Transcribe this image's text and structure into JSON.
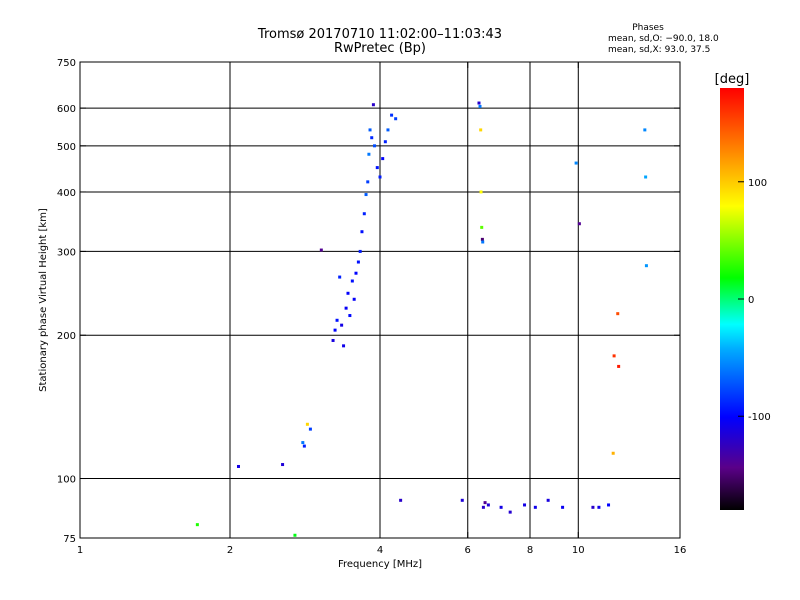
{
  "chart_data": {
    "type": "scatter",
    "title": "Tromsø 20170710 11:02:00–11:03:43",
    "subtitle": "RwPretec (Bp)",
    "xlabel": "Frequency [MHz]",
    "ylabel": "Stationary phase Virtual Height [km]",
    "x_scale": "log",
    "y_scale": "log",
    "xlim": [
      1,
      16
    ],
    "ylim": [
      75,
      750
    ],
    "x_ticks": [
      1,
      2,
      4,
      6,
      8,
      10,
      16
    ],
    "y_ticks": [
      75,
      100,
      200,
      300,
      400,
      500,
      600,
      750
    ],
    "x_grid": [
      2,
      4,
      6,
      8,
      10
    ],
    "y_grid": [
      100,
      200,
      300,
      400,
      500,
      600
    ],
    "phase_info": {
      "title": "Phases",
      "line1": "mean, sd,O: −90.0, 18.0",
      "line2": "mean, sd,X:  93.0, 37.5"
    },
    "colorbar": {
      "label": "[deg]",
      "range": [
        -180,
        180
      ],
      "ticks": [
        -100,
        0,
        100
      ]
    },
    "series": [
      {
        "points": [
          [
            1.72,
            80,
            25
          ],
          [
            2.08,
            106,
            -110
          ],
          [
            2.55,
            107,
            -115
          ],
          [
            2.7,
            76,
            15
          ],
          [
            2.8,
            119,
            -60
          ],
          [
            2.82,
            117,
            -90
          ],
          [
            2.86,
            130,
            95
          ],
          [
            2.9,
            127,
            -80
          ],
          [
            3.05,
            302,
            -140
          ],
          [
            3.22,
            195,
            -112
          ],
          [
            3.25,
            205,
            -100
          ],
          [
            3.28,
            215,
            -95
          ],
          [
            3.32,
            265,
            -90
          ],
          [
            3.35,
            210,
            -110
          ],
          [
            3.38,
            190,
            -108
          ],
          [
            3.42,
            228,
            -104
          ],
          [
            3.45,
            245,
            -102
          ],
          [
            3.48,
            220,
            -98
          ],
          [
            3.52,
            260,
            -96
          ],
          [
            3.55,
            238,
            -103
          ],
          [
            3.58,
            270,
            -100
          ],
          [
            3.62,
            285,
            -95
          ],
          [
            3.65,
            300,
            -92
          ],
          [
            3.68,
            330,
            -96
          ],
          [
            3.72,
            360,
            -90
          ],
          [
            3.75,
            395,
            -70
          ],
          [
            3.78,
            420,
            -80
          ],
          [
            3.8,
            480,
            -60
          ],
          [
            3.82,
            540,
            -70
          ],
          [
            3.85,
            520,
            -88
          ],
          [
            3.88,
            610,
            -120
          ],
          [
            3.9,
            500,
            -75
          ],
          [
            3.95,
            450,
            -95
          ],
          [
            4.0,
            430,
            -92
          ],
          [
            4.05,
            470,
            -100
          ],
          [
            4.1,
            510,
            -90
          ],
          [
            4.15,
            540,
            -70
          ],
          [
            4.22,
            580,
            -85
          ],
          [
            4.3,
            570,
            -80
          ],
          [
            4.4,
            90,
            -120
          ],
          [
            5.85,
            90,
            -115
          ],
          [
            6.32,
            615,
            -118
          ],
          [
            6.35,
            605,
            -60
          ],
          [
            6.37,
            540,
            95
          ],
          [
            6.38,
            400,
            80
          ],
          [
            6.4,
            337,
            40
          ],
          [
            6.42,
            318,
            -150
          ],
          [
            6.43,
            314,
            -60
          ],
          [
            6.45,
            87,
            -120
          ],
          [
            6.5,
            89,
            -140
          ],
          [
            6.6,
            88,
            -115
          ],
          [
            7.0,
            87,
            -110
          ],
          [
            7.3,
            85,
            -118
          ],
          [
            7.8,
            88,
            -110
          ],
          [
            8.2,
            87,
            -108
          ],
          [
            8.7,
            90,
            -112
          ],
          [
            9.3,
            87,
            -105
          ],
          [
            9.9,
            460,
            -55
          ],
          [
            10.05,
            343,
            -140
          ],
          [
            10.7,
            87,
            -120
          ],
          [
            11.0,
            87,
            -108
          ],
          [
            11.5,
            88,
            -100
          ],
          [
            11.75,
            113,
            110
          ],
          [
            11.8,
            181,
            160
          ],
          [
            12.0,
            222,
            150
          ],
          [
            12.05,
            172,
            170
          ],
          [
            13.6,
            540,
            -55
          ],
          [
            13.65,
            430,
            -45
          ],
          [
            13.7,
            280,
            -50
          ]
        ]
      }
    ]
  }
}
